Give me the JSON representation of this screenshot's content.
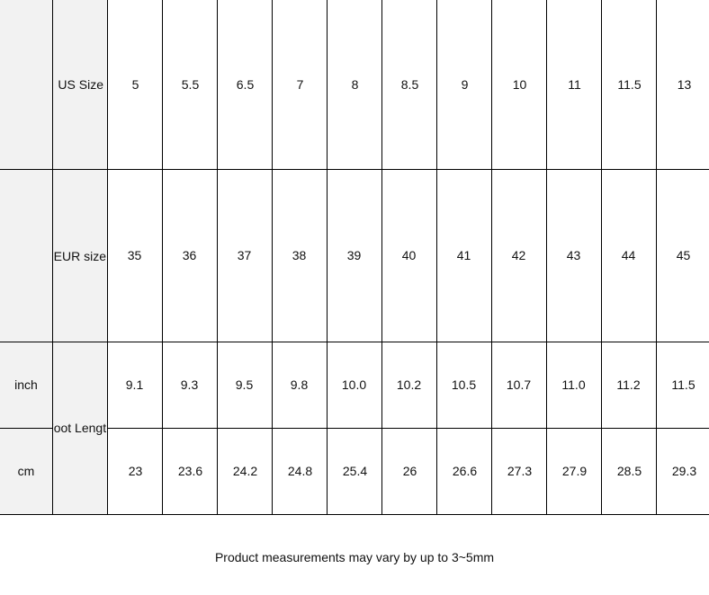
{
  "table": {
    "row_headers": {
      "us": "US Size",
      "eur": "EUR size",
      "foot_length": "Foot Length",
      "inch": "inch",
      "cm": "cm"
    },
    "rows": {
      "us": [
        "5",
        "5.5",
        "6.5",
        "7",
        "8",
        "8.5",
        "9",
        "10",
        "11",
        "11.5",
        "13"
      ],
      "eur": [
        "35",
        "36",
        "37",
        "38",
        "39",
        "40",
        "41",
        "42",
        "43",
        "44",
        "45"
      ],
      "inch": [
        "9.1",
        "9.3",
        "9.5",
        "9.8",
        "10.0",
        "10.2",
        "10.5",
        "10.7",
        "11.0",
        "11.2",
        "11.5"
      ],
      "cm": [
        "23",
        "23.6",
        "24.2",
        "24.8",
        "25.4",
        "26",
        "26.6",
        "27.3",
        "27.9",
        "28.5",
        "29.3"
      ]
    }
  },
  "note": "Product measurements may vary by up to 3~5mm"
}
